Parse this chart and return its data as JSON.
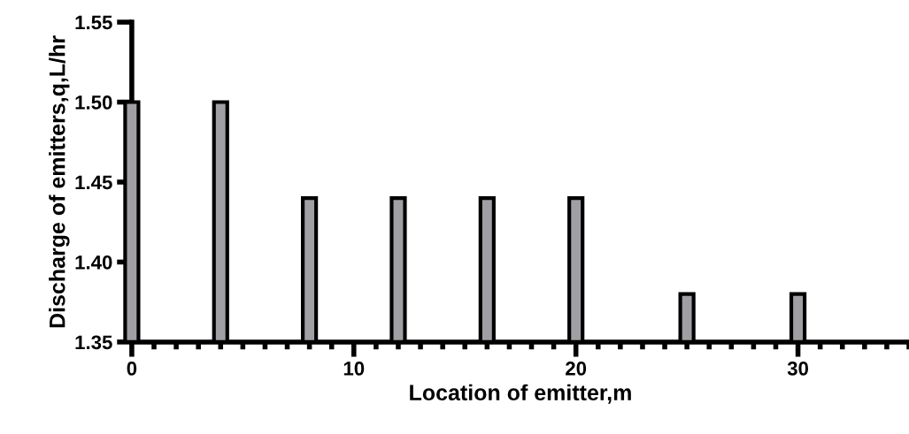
{
  "chart_data": {
    "type": "bar",
    "xlabel": "Location of emitter,m",
    "ylabel": "Discharge of emitters,q,L/hr",
    "x": [
      0,
      4,
      8,
      12,
      16,
      20,
      25,
      30
    ],
    "values": [
      1.5,
      1.5,
      1.44,
      1.44,
      1.44,
      1.44,
      1.38,
      1.38
    ],
    "color": "#a0a0a4",
    "xlim": [
      0,
      35
    ],
    "xticks": [
      0,
      10,
      20,
      30
    ],
    "ylim": [
      1.35,
      1.55
    ],
    "yticks": [
      {
        "value": 1.35,
        "label": "1.35"
      },
      {
        "value": 1.4,
        "label": "1.40"
      },
      {
        "value": 1.45,
        "label": "1.45"
      },
      {
        "value": 1.5,
        "label": "1.50"
      },
      {
        "value": 1.55,
        "label": "1.55"
      }
    ],
    "grid": false,
    "legend": false
  }
}
